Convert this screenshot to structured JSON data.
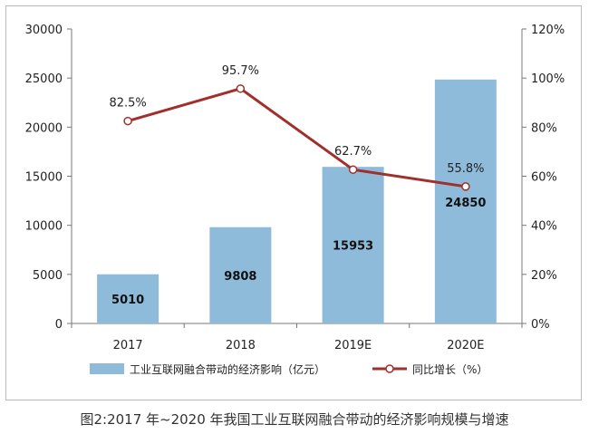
{
  "chart_data": {
    "type": "bar",
    "categories": [
      "2017",
      "2018",
      "2019E",
      "2020E"
    ],
    "series": [
      {
        "name": "工业互联网融合带动的经济影响（亿元）",
        "type": "bar",
        "axis": "left",
        "values": [
          5010,
          9808,
          15953,
          24850
        ],
        "labels": [
          "5010",
          "9808",
          "15953",
          "24850"
        ],
        "color": "#8fbbdb"
      },
      {
        "name": "同比增长（%）",
        "type": "line",
        "axis": "right",
        "values": [
          82.5,
          95.7,
          62.7,
          55.8
        ],
        "labels": [
          "82.5%",
          "95.7%",
          "62.7%",
          "55.8%"
        ],
        "color": "#a0302b"
      }
    ],
    "y_left": {
      "min": 0,
      "max": 30000,
      "ticks": [
        "0",
        "5000",
        "10000",
        "15000",
        "20000",
        "25000",
        "30000"
      ]
    },
    "y_right": {
      "min": 0,
      "max": 120,
      "ticks": [
        "0%",
        "20%",
        "40%",
        "60%",
        "80%",
        "100%",
        "120%"
      ]
    },
    "grid": false,
    "legend_position": "bottom"
  },
  "caption": "图2:2017 年~2020 年我国工业互联网融合带动的经济影响规模与增速"
}
